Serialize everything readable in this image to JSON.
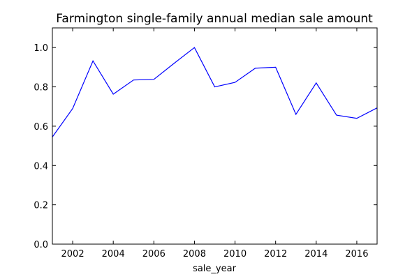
{
  "chart_data": {
    "type": "line",
    "title": "Farmington single-family annual median sale amount",
    "xlabel": "sale_year",
    "ylabel": "",
    "xlim": [
      2001,
      2017
    ],
    "ylim": [
      0.0,
      1.1
    ],
    "grid": false,
    "x_ticks": [
      2002,
      2004,
      2006,
      2008,
      2010,
      2012,
      2014,
      2016
    ],
    "x_tick_labels": [
      "2002",
      "2004",
      "2006",
      "2008",
      "2010",
      "2012",
      "2014",
      "2016"
    ],
    "y_ticks": [
      0.0,
      0.2,
      0.4,
      0.6,
      0.8,
      1.0
    ],
    "y_tick_labels": [
      "0.0",
      "0.2",
      "0.4",
      "0.6",
      "0.8",
      "1.0"
    ],
    "series": [
      {
        "color": "#0000ff",
        "x": [
          2001,
          2002,
          2003,
          2004,
          2005,
          2006,
          2007,
          2008,
          2009,
          2010,
          2011,
          2012,
          2013,
          2014,
          2015,
          2016,
          2017
        ],
        "y": [
          0.545,
          0.69,
          0.932,
          0.763,
          0.835,
          0.838,
          0.92,
          1.0,
          0.8,
          0.823,
          0.895,
          0.9,
          0.66,
          0.82,
          0.656,
          0.64,
          0.693
        ]
      }
    ]
  }
}
